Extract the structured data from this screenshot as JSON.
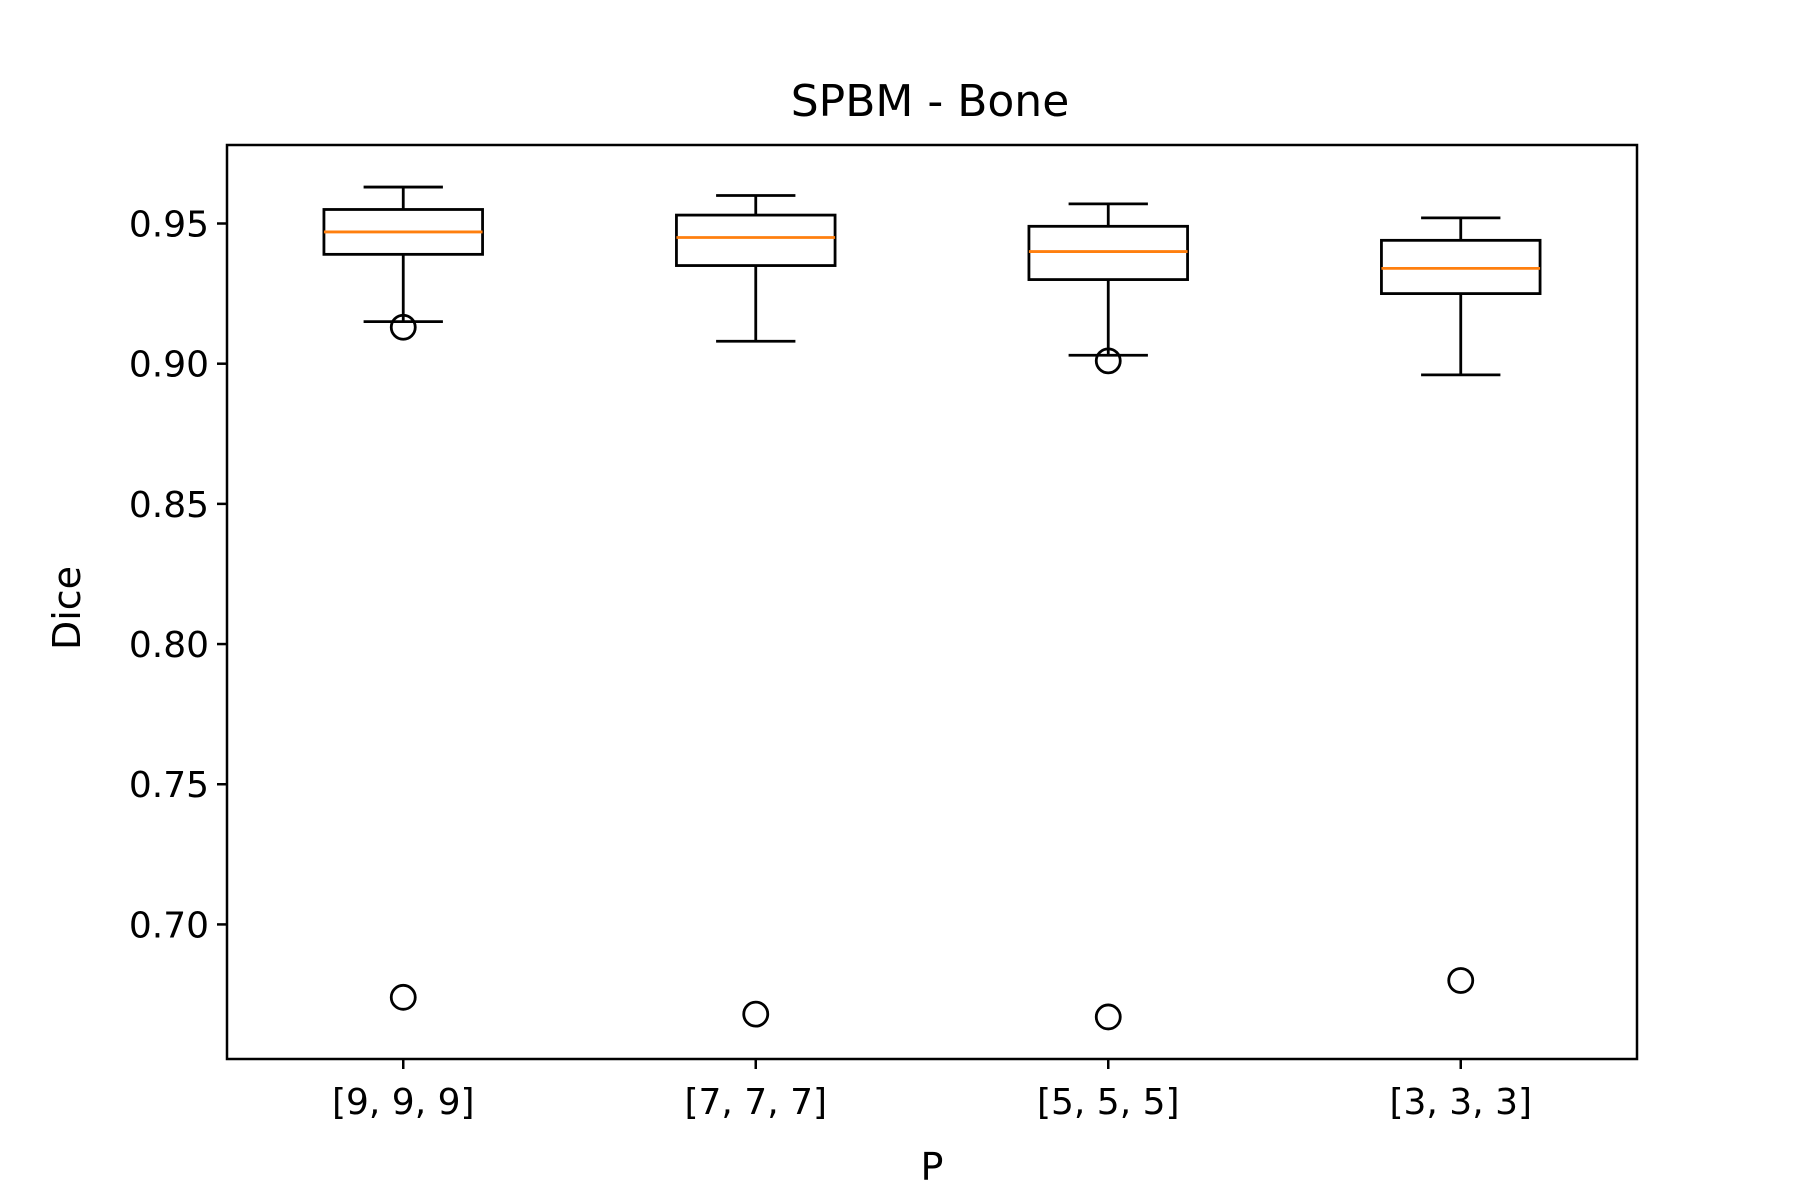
{
  "chart_data": {
    "type": "box",
    "title": "SPBM - Bone",
    "xlabel": "P",
    "ylabel": "Dice",
    "ylim": [
      0.652,
      0.978
    ],
    "yticks": [
      0.7,
      0.75,
      0.8,
      0.85,
      0.9,
      0.95
    ],
    "ytick_labels": [
      "0.70",
      "0.75",
      "0.80",
      "0.85",
      "0.90",
      "0.95"
    ],
    "categories": [
      "[9, 9, 9]",
      "[7, 7, 7]",
      "[5, 5, 5]",
      "[3, 3, 3]"
    ],
    "boxes": [
      {
        "category": "[9, 9, 9]",
        "whisker_low": 0.915,
        "q1": 0.939,
        "median": 0.947,
        "q3": 0.955,
        "whisker_high": 0.963,
        "outliers": [
          0.913,
          0.674
        ]
      },
      {
        "category": "[7, 7, 7]",
        "whisker_low": 0.908,
        "q1": 0.935,
        "median": 0.945,
        "q3": 0.953,
        "whisker_high": 0.96,
        "outliers": [
          0.668
        ]
      },
      {
        "category": "[5, 5, 5]",
        "whisker_low": 0.903,
        "q1": 0.93,
        "median": 0.94,
        "q3": 0.949,
        "whisker_high": 0.957,
        "outliers": [
          0.901,
          0.667
        ]
      },
      {
        "category": "[3, 3, 3]",
        "whisker_low": 0.896,
        "q1": 0.925,
        "median": 0.934,
        "q3": 0.944,
        "whisker_high": 0.952,
        "outliers": [
          0.68
        ]
      }
    ],
    "colors": {
      "box": "#000000",
      "median": "#ff7f0e",
      "outlier": "#000000"
    },
    "grid": false,
    "legend": "none"
  }
}
